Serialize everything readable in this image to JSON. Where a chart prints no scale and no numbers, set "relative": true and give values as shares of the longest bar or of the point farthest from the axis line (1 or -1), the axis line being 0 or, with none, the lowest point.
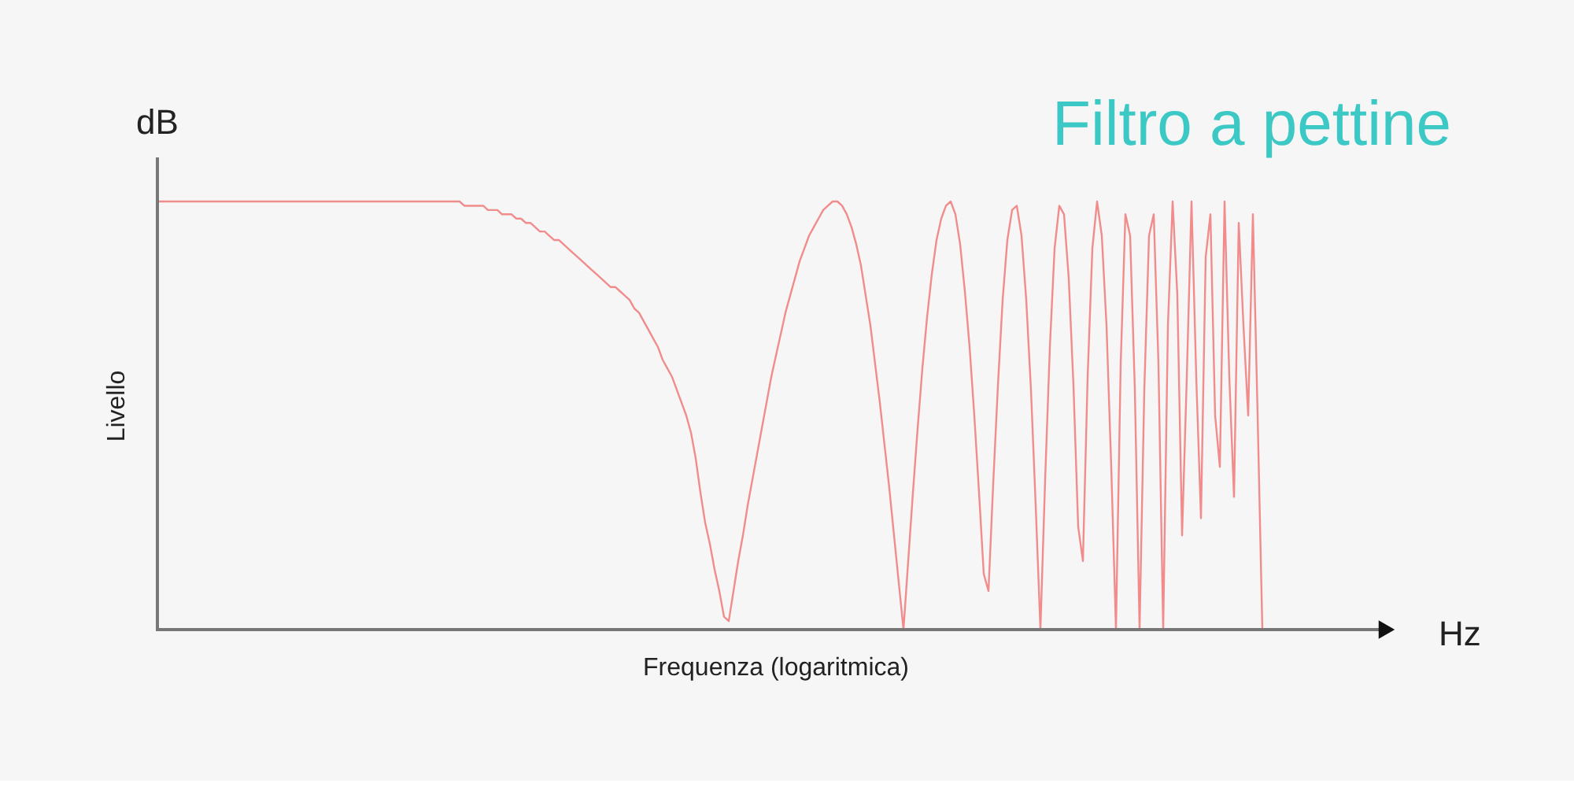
{
  "chart_data": {
    "type": "line",
    "relative": true,
    "title": "Filtro a pettine",
    "xlabel": "Frequenza (logaritmica)",
    "ylabel": "Livello",
    "annotations": [
      "dB",
      "Hz"
    ],
    "color": "#f08c8c",
    "line_style": "solid",
    "categories": [
      null,
      null,
      null,
      null,
      null,
      null,
      null,
      null,
      null,
      null,
      null,
      null,
      null,
      null,
      null,
      null,
      null,
      null,
      null,
      null,
      null,
      null,
      null,
      null,
      null,
      null,
      null,
      null,
      null,
      null,
      null,
      null,
      null,
      null,
      null,
      null,
      null,
      null,
      null,
      null,
      null,
      null,
      null,
      null,
      null,
      null,
      null,
      null,
      null,
      null,
      null,
      null,
      null,
      null,
      null,
      null,
      null,
      null,
      null,
      null,
      null,
      null,
      null,
      null,
      null,
      null,
      null,
      null,
      null,
      null,
      null,
      null,
      null,
      null,
      null,
      null,
      null,
      null,
      null,
      null,
      null,
      null,
      null,
      null,
      null,
      null,
      null,
      null,
      null,
      null,
      null,
      null,
      null,
      null,
      null,
      null,
      null,
      null,
      null,
      null,
      null,
      null,
      null,
      null,
      null,
      null,
      null,
      null,
      null,
      null,
      null,
      null,
      null,
      null,
      null,
      null,
      null,
      null,
      null,
      null,
      null,
      null,
      null,
      null,
      null,
      null,
      null,
      null,
      null,
      null,
      null,
      null,
      null,
      null,
      null,
      null,
      null,
      null,
      null,
      null,
      null,
      null,
      null,
      null,
      null,
      null,
      null,
      null,
      null,
      null,
      null,
      null,
      null,
      null,
      null,
      null,
      null,
      null,
      null,
      null,
      null,
      null,
      null,
      null,
      null,
      null,
      null,
      null,
      null,
      null,
      null,
      null,
      null,
      null,
      null,
      null,
      null,
      null,
      null,
      null,
      null,
      null,
      null,
      null,
      null,
      null,
      null,
      null,
      null,
      null,
      null,
      null,
      null,
      null,
      null,
      null,
      null,
      null,
      null,
      null,
      null,
      null,
      null,
      null,
      null,
      null,
      null,
      null,
      null,
      null,
      null,
      null,
      null,
      null,
      null,
      null,
      null,
      null,
      null,
      null,
      null,
      null,
      null,
      null,
      null,
      null,
      null,
      null,
      null,
      null,
      null,
      null,
      null,
      null,
      null
    ],
    "values": [
      1,
      1,
      1,
      1,
      1,
      1,
      1,
      1,
      1,
      1,
      1,
      1,
      1,
      1,
      1,
      1,
      1,
      1,
      1,
      1,
      1,
      1,
      1,
      1,
      1,
      1,
      1,
      1,
      1,
      1,
      1,
      1,
      1,
      1,
      1,
      1,
      1,
      1,
      1,
      1,
      1,
      1,
      1,
      1,
      1,
      1,
      1,
      1,
      1,
      1,
      1,
      1,
      1,
      1,
      1,
      1,
      1,
      1,
      1,
      1,
      1,
      1,
      1,
      1,
      1,
      0.99,
      0.99,
      0.99,
      0.99,
      0.99,
      0.98,
      0.98,
      0.98,
      0.97,
      0.97,
      0.97,
      0.96,
      0.96,
      0.95,
      0.95,
      0.94,
      0.93,
      0.93,
      0.92,
      0.91,
      0.91,
      0.9,
      0.89,
      0.88,
      0.87,
      0.86,
      0.85,
      0.84,
      0.83,
      0.82,
      0.81,
      0.8,
      0.8,
      0.79,
      0.78,
      0.77,
      0.75,
      0.74,
      0.72,
      0.7,
      0.68,
      0.66,
      0.63,
      0.61,
      0.59,
      0.56,
      0.53,
      0.5,
      0.46,
      0.4,
      0.32,
      0.25,
      0.2,
      0.14,
      0.09,
      0.03,
      0.02,
      0.09,
      0.16,
      0.22,
      0.29,
      0.35,
      0.41,
      0.47,
      0.53,
      0.59,
      0.64,
      0.69,
      0.74,
      0.78,
      0.82,
      0.86,
      0.89,
      0.92,
      0.94,
      0.96,
      0.98,
      0.99,
      1,
      1,
      0.99,
      0.97,
      0.94,
      0.9,
      0.85,
      0.78,
      0.71,
      0.62,
      0.53,
      0.43,
      0.33,
      0.22,
      0.11,
      0,
      0.16,
      0.32,
      0.47,
      0.61,
      0.73,
      0.83,
      0.91,
      0.96,
      0.99,
      1,
      0.97,
      0.9,
      0.79,
      0.66,
      0.5,
      0.32,
      0.13,
      0.09,
      0.34,
      0.57,
      0.77,
      0.91,
      0.98,
      0.99,
      0.92,
      0.77,
      0.56,
      0.29,
      0,
      0.35,
      0.66,
      0.89,
      0.99,
      0.97,
      0.82,
      0.57,
      0.24,
      0.16,
      0.59,
      0.89,
      1,
      0.92,
      0.71,
      0.38,
      0,
      0.62,
      0.97,
      0.92,
      0.56,
      0,
      0.56,
      0.92,
      0.97,
      0.62,
      0,
      0.71,
      1,
      0.78,
      0.22,
      0.59,
      1,
      0.59,
      0.26,
      0.87,
      0.97,
      0.5,
      0.38,
      1,
      0.59,
      0.31,
      0.95,
      0.71,
      0.5,
      0.97,
      0.5,
      0
    ]
  }
}
